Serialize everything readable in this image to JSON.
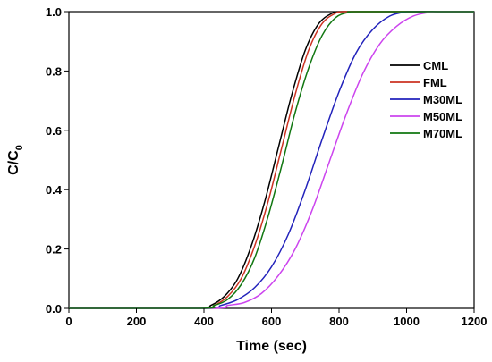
{
  "chart_data": {
    "type": "line",
    "title": "",
    "xlabel": "Time (sec)",
    "ylabel": "C/C0",
    "ylabel_main": "C/C",
    "ylabel_sub": "0",
    "xlim": [
      0,
      1200
    ],
    "ylim": [
      0,
      1.0
    ],
    "xticks": [
      0,
      200,
      400,
      600,
      800,
      1000,
      1200
    ],
    "yticks": [
      0.0,
      0.2,
      0.4,
      0.6,
      0.8,
      1.0
    ],
    "xtick_labels": [
      "0",
      "200",
      "400",
      "600",
      "800",
      "1000",
      "1200"
    ],
    "ytick_labels": [
      "0.0",
      "0.2",
      "0.4",
      "0.6",
      "0.8",
      "1.0"
    ],
    "grid": false,
    "legend_position": "right",
    "series": [
      {
        "name": "CML",
        "color": "#000000",
        "x": [
          0,
          380,
          420,
          460,
          500,
          540,
          580,
          620,
          660,
          700,
          740,
          780,
          800,
          900,
          1200
        ],
        "y": [
          0,
          0,
          0.01,
          0.04,
          0.1,
          0.21,
          0.36,
          0.54,
          0.72,
          0.87,
          0.96,
          0.995,
          1.0,
          1.0,
          1.0
        ]
      },
      {
        "name": "FML",
        "color": "#cc3322",
        "x": [
          0,
          390,
          430,
          470,
          510,
          550,
          590,
          630,
          670,
          710,
          750,
          790,
          810,
          900,
          1200
        ],
        "y": [
          0,
          0,
          0.01,
          0.04,
          0.1,
          0.21,
          0.36,
          0.54,
          0.72,
          0.87,
          0.96,
          0.995,
          1.0,
          1.0,
          1.0
        ]
      },
      {
        "name": "M30ML",
        "color": "#2222bb",
        "x": [
          0,
          400,
          450,
          500,
          550,
          600,
          650,
          700,
          750,
          800,
          850,
          900,
          950,
          1000,
          1020,
          1200
        ],
        "y": [
          0,
          0,
          0.01,
          0.03,
          0.07,
          0.14,
          0.25,
          0.4,
          0.57,
          0.73,
          0.86,
          0.94,
          0.985,
          1.0,
          1.0,
          1.0
        ]
      },
      {
        "name": "M50ML",
        "color": "#cc44ee",
        "x": [
          0,
          420,
          470,
          520,
          570,
          620,
          670,
          720,
          770,
          820,
          870,
          920,
          970,
          1020,
          1070,
          1100,
          1200
        ],
        "y": [
          0,
          0,
          0.01,
          0.02,
          0.05,
          0.11,
          0.2,
          0.33,
          0.49,
          0.65,
          0.79,
          0.89,
          0.95,
          0.985,
          0.998,
          1.0,
          1.0
        ]
      },
      {
        "name": "M70ML",
        "color": "#117711",
        "x": [
          0,
          390,
          430,
          470,
          510,
          550,
          590,
          630,
          670,
          710,
          750,
          790,
          830,
          860,
          1200
        ],
        "y": [
          0,
          0,
          0.01,
          0.03,
          0.08,
          0.17,
          0.31,
          0.48,
          0.66,
          0.81,
          0.92,
          0.98,
          0.998,
          1.0,
          1.0
        ]
      }
    ]
  }
}
